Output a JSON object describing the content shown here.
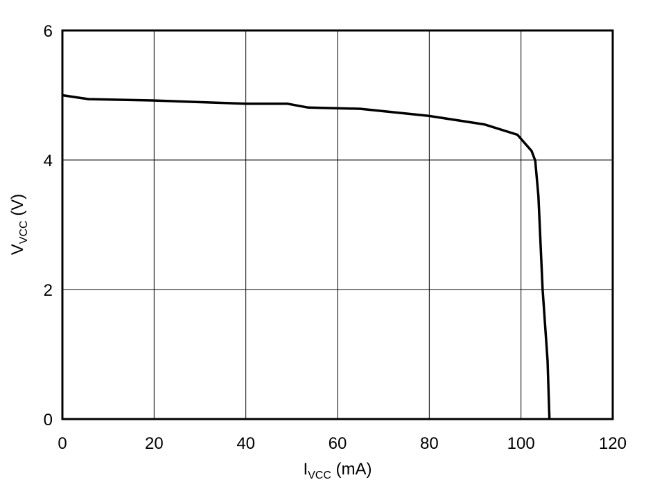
{
  "chart_data": {
    "type": "line",
    "title": "",
    "xlabel": {
      "main": "I",
      "sub": "VCC",
      "unit": " (mA)"
    },
    "ylabel": {
      "main": "V",
      "sub": "VCC",
      "unit": " (V)"
    },
    "xlim": [
      0,
      120
    ],
    "ylim": [
      0,
      6
    ],
    "xticks": [
      0,
      20,
      40,
      60,
      80,
      100,
      120
    ],
    "yticks": [
      0,
      2,
      4,
      6
    ],
    "grid": true,
    "line_color": "#000000",
    "series": [
      {
        "x": [
          0,
          5.7,
          19.6,
          40,
          49,
          53.6,
          65,
          80,
          92,
          99.2,
          102.3,
          103.1,
          103.8,
          104.7,
          105.8,
          106.2
        ],
        "y": [
          5.0,
          4.94,
          4.92,
          4.87,
          4.87,
          4.81,
          4.79,
          4.68,
          4.55,
          4.39,
          4.14,
          3.99,
          3.44,
          2.01,
          0.9,
          0
        ]
      }
    ]
  }
}
